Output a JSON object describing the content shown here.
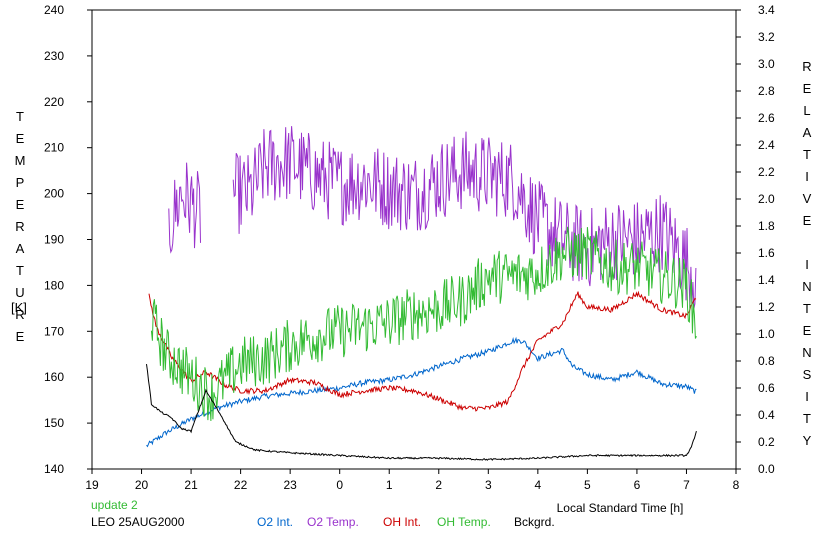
{
  "chart_data": {
    "type": "line",
    "xlabel": "Local Standard Time [h]",
    "x_ticks": [
      "19",
      "20",
      "21",
      "22",
      "23",
      "0",
      "1",
      "2",
      "3",
      "4",
      "5",
      "6",
      "7",
      "8"
    ],
    "y_left_label": "TEMPERATURE",
    "y_left_unit": "[K]",
    "y_left_ticks": [
      "140",
      "150",
      "160",
      "170",
      "180",
      "190",
      "200",
      "210",
      "220",
      "230",
      "240"
    ],
    "y_left_range": [
      140,
      240
    ],
    "y_right_label": "RELATIVE INTENSITY",
    "y_right_ticks": [
      "0.0",
      "0.2",
      "0.4",
      "0.6",
      "0.8",
      "1.0",
      "1.2",
      "1.4",
      "1.6",
      "1.8",
      "2.0",
      "2.2",
      "2.4",
      "2.6",
      "2.8",
      "3.0",
      "3.2",
      "3.4"
    ],
    "y_right_range": [
      0,
      3.4
    ],
    "x_range_hours": [
      19,
      32
    ],
    "series": [
      {
        "name": "O2 Int.",
        "color": "#0066cc",
        "axis": "right",
        "noise": 0.02,
        "x": [
          20.1,
          20.5,
          21.0,
          21.5,
          22.0,
          22.5,
          23.0,
          23.5,
          24.0,
          24.5,
          25.0,
          25.5,
          26.0,
          26.5,
          27.0,
          27.5,
          27.7,
          28.0,
          28.5,
          28.7,
          29.0,
          29.5,
          30.0,
          30.5,
          31.0,
          31.2
        ],
        "y": [
          0.17,
          0.27,
          0.37,
          0.45,
          0.5,
          0.54,
          0.56,
          0.58,
          0.6,
          0.64,
          0.66,
          0.7,
          0.76,
          0.82,
          0.87,
          0.95,
          0.95,
          0.82,
          0.88,
          0.76,
          0.7,
          0.66,
          0.72,
          0.63,
          0.61,
          0.57
        ]
      },
      {
        "name": "O2 Temp.",
        "color": "#9933cc",
        "axis": "left",
        "noise": 9,
        "segments": [
          {
            "x": [
              20.55,
              20.8,
              21.0,
              21.2
            ],
            "y": [
              192,
              200,
              198,
              195
            ]
          },
          {
            "x": [
              21.85,
              22.2,
              22.5,
              23.0,
              23.5,
              24.0,
              24.5,
              25.0,
              25.5,
              26.0,
              26.5,
              27.0,
              27.5,
              28.0,
              28.5,
              29.0,
              29.5,
              30.0,
              30.5,
              31.0,
              31.2
            ],
            "y": [
              200,
              200,
              206,
              207,
              204,
              202,
              203,
              201,
              200,
              203,
              205,
              204,
              203,
              194,
              190,
              188,
              190,
              190,
              192,
              185,
              182
            ]
          }
        ]
      },
      {
        "name": "OH Int.",
        "color": "#cc0000",
        "axis": "right",
        "noise": 0.02,
        "x": [
          20.15,
          20.3,
          20.6,
          21.0,
          21.3,
          21.7,
          22.0,
          22.5,
          23.0,
          23.5,
          24.0,
          24.5,
          25.0,
          25.5,
          26.0,
          26.5,
          27.0,
          27.4,
          27.7,
          28.0,
          28.5,
          28.8,
          29.0,
          29.5,
          30.0,
          30.5,
          31.0,
          31.2
        ],
        "y": [
          1.28,
          1.05,
          0.83,
          0.65,
          0.72,
          0.62,
          0.58,
          0.58,
          0.66,
          0.64,
          0.55,
          0.58,
          0.6,
          0.58,
          0.52,
          0.45,
          0.45,
          0.5,
          0.75,
          0.95,
          1.08,
          1.3,
          1.2,
          1.18,
          1.3,
          1.18,
          1.13,
          1.28
        ]
      },
      {
        "name": "OH Temp.",
        "color": "#33bb33",
        "axis": "left",
        "noise": 6,
        "x": [
          20.2,
          20.5,
          21.0,
          21.4,
          22.0,
          22.5,
          23.0,
          23.5,
          24.0,
          24.5,
          25.0,
          25.5,
          26.0,
          26.5,
          27.0,
          27.5,
          28.0,
          28.5,
          29.0,
          29.5,
          30.0,
          30.5,
          31.0,
          31.2
        ],
        "y": [
          173,
          165,
          160,
          156,
          163,
          164,
          167,
          169,
          170,
          171,
          172,
          174,
          175,
          177,
          182,
          182,
          183,
          187,
          187,
          184,
          184,
          182,
          180,
          171
        ]
      },
      {
        "name": "Bckgrd.",
        "color": "#000000",
        "axis": "right",
        "noise": 0.006,
        "x": [
          20.1,
          20.2,
          20.4,
          20.6,
          20.8,
          21.0,
          21.3,
          21.6,
          21.9,
          22.3,
          23.0,
          24.0,
          25.0,
          26.0,
          27.0,
          28.0,
          29.0,
          30.0,
          31.0,
          31.1,
          31.2
        ],
        "y": [
          0.78,
          0.48,
          0.42,
          0.38,
          0.3,
          0.28,
          0.58,
          0.4,
          0.2,
          0.14,
          0.12,
          0.1,
          0.08,
          0.08,
          0.07,
          0.08,
          0.1,
          0.1,
          0.1,
          0.16,
          0.28
        ]
      }
    ]
  },
  "footer": {
    "update_text": "update 2",
    "station_text": "LEO 25AUG2000",
    "legend": [
      {
        "label": "O2 Int.",
        "color": "#0066cc"
      },
      {
        "label": "O2 Temp.",
        "color": "#9933cc"
      },
      {
        "label": "OH Int.",
        "color": "#cc0000"
      },
      {
        "label": "OH Temp.",
        "color": "#33bb33"
      },
      {
        "label": "Bckgrd.",
        "color": "#000000"
      }
    ],
    "update_color": "#33bb33"
  }
}
